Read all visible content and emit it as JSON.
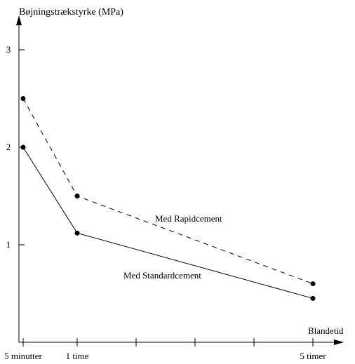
{
  "chart_data": {
    "type": "line",
    "ylabel": "Bøjningstrækstyrke (MPa)",
    "xlabel": "Blandetid",
    "y_ticks": [
      {
        "value": 1,
        "label": "1"
      },
      {
        "value": 2,
        "label": "2"
      },
      {
        "value": 3,
        "label": "3"
      }
    ],
    "x_ticks": [
      {
        "value": 0,
        "label": "5 minutter"
      },
      {
        "value": 1,
        "label": "1 time"
      },
      {
        "value": 2,
        "label": ""
      },
      {
        "value": 3,
        "label": ""
      },
      {
        "value": 4,
        "label": ""
      },
      {
        "value": 5,
        "label": "5 timer"
      }
    ],
    "series": [
      {
        "name": "Med Rapidcement",
        "style": "dashed",
        "x": [
          0,
          1,
          5
        ],
        "values": [
          2.5,
          1.5,
          0.6
        ]
      },
      {
        "name": "Med Standardcement",
        "style": "solid",
        "x": [
          0,
          1,
          5
        ],
        "values": [
          2.0,
          1.12,
          0.45
        ]
      }
    ],
    "xlim": [
      0,
      5
    ],
    "ylim": [
      0,
      3
    ],
    "grid": false,
    "legend": "inline labels"
  }
}
